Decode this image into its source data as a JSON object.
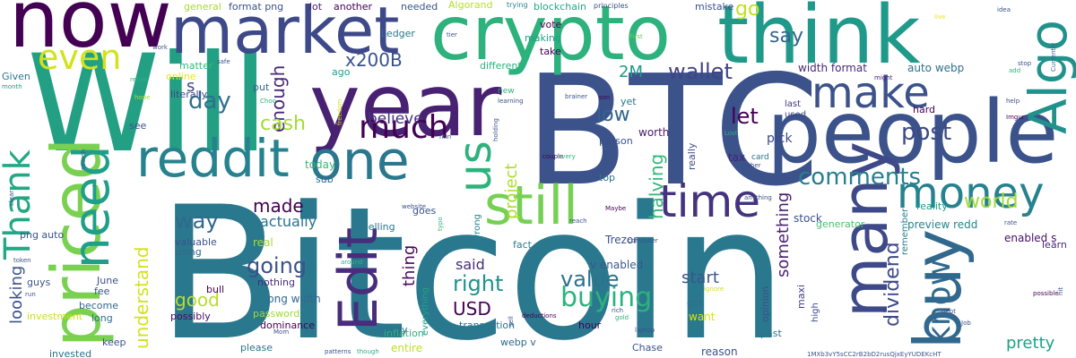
{
  "background": "#ffffff",
  "words": [
    {
      "text": "Bitcoin",
      "color": "#2a788e"
    },
    {
      "text": "Will",
      "color": "#23a083"
    },
    {
      "text": "BTC",
      "color": "#3b528b"
    },
    {
      "text": "crypto",
      "color": "#2db27d"
    },
    {
      "text": "think",
      "color": "#1f9a8a"
    },
    {
      "text": "people",
      "color": "#3b528b"
    },
    {
      "text": "year",
      "color": "#482173"
    },
    {
      "text": "now",
      "color": "#440154"
    },
    {
      "text": "market",
      "color": "#3e4989"
    },
    {
      "text": "priced",
      "color": "#7ad151"
    },
    {
      "text": "buy",
      "color": "#31688e"
    },
    {
      "text": "one",
      "color": "#2a788e"
    },
    {
      "text": "many",
      "color": "#3e4989"
    },
    {
      "text": "reddit",
      "color": "#26828e"
    },
    {
      "text": "Edit",
      "color": "#472d7b"
    },
    {
      "text": "Algo",
      "color": "#21918c"
    },
    {
      "text": "need",
      "color": "#1f9e89"
    },
    {
      "text": "Thank",
      "color": "#22a884"
    },
    {
      "text": "still",
      "color": "#75d054"
    },
    {
      "text": "time",
      "color": "#46337f"
    },
    {
      "text": "money",
      "color": "#26828e"
    },
    {
      "text": "make",
      "color": "#3b528b"
    },
    {
      "text": "us",
      "color": "#2db27d"
    },
    {
      "text": "much",
      "color": "#440154"
    },
    {
      "text": "even",
      "color": "#d2e21b"
    },
    {
      "text": "know",
      "color": "#31688e"
    },
    {
      "text": "comments",
      "color": "#277f8e"
    },
    {
      "text": "buying",
      "color": "#2db27d"
    },
    {
      "text": "going",
      "color": "#3b528b"
    },
    {
      "text": "value",
      "color": "#2c728e"
    },
    {
      "text": "right",
      "color": "#21918c"
    },
    {
      "text": "dividend",
      "color": "#3e4989"
    },
    {
      "text": "post",
      "color": "#3e4989"
    },
    {
      "text": "way",
      "color": "#31688e"
    },
    {
      "text": "understand",
      "color": "#d2e21b"
    },
    {
      "text": "wallet",
      "color": "#414487"
    },
    {
      "text": "made",
      "color": "#440154"
    },
    {
      "text": "let",
      "color": "#440154"
    },
    {
      "text": "enough",
      "color": "#482878"
    },
    {
      "text": "cash",
      "color": "#a5db36"
    },
    {
      "text": "day",
      "color": "#2e6f8e"
    },
    {
      "text": "say",
      "color": "#32658e"
    },
    {
      "text": "x200B",
      "color": "#3b528b"
    },
    {
      "text": "believe",
      "color": "#46327e"
    },
    {
      "text": "low",
      "color": "#32648e"
    },
    {
      "text": "world",
      "color": "#a0da39"
    },
    {
      "text": "halving",
      "color": "#35b779"
    },
    {
      "text": "project",
      "color": "#addc30"
    },
    {
      "text": "something",
      "color": "#481f70"
    },
    {
      "text": "actually",
      "color": "#2c728e"
    },
    {
      "text": "start",
      "color": "#39568c"
    },
    {
      "text": "USD",
      "color": "#440154"
    },
    {
      "text": "said",
      "color": "#472c7a"
    },
    {
      "text": "thing",
      "color": "#46085c"
    },
    {
      "text": "good",
      "color": "#b8de29"
    },
    {
      "text": "looking",
      "color": "#3b528b"
    },
    {
      "text": "pretty",
      "color": "#1fa088"
    },
    {
      "text": "go",
      "color": "#c2df23"
    },
    {
      "text": "s",
      "color": "#3f4788"
    },
    {
      "text": "2M",
      "color": "#1f9a8a"
    },
    {
      "text": "preview redd",
      "color": "#25858e"
    },
    {
      "text": "auto webp",
      "color": "#2d708e"
    },
    {
      "text": "width format",
      "color": "#472a7a"
    },
    {
      "text": "enabled s",
      "color": "#471365"
    },
    {
      "text": "learn",
      "color": "#482878"
    },
    {
      "text": "Trezor",
      "color": "#3b528b"
    },
    {
      "text": "v enabled",
      "color": "#38588c"
    },
    {
      "text": "fact",
      "color": "#277f8e"
    },
    {
      "text": "png width",
      "color": "#31688e"
    },
    {
      "text": "stock",
      "color": "#3b528b"
    },
    {
      "text": "generator",
      "color": "#4ac16d"
    },
    {
      "text": "reality",
      "color": "#1e9b8a"
    },
    {
      "text": "remember",
      "color": "#287d8e"
    },
    {
      "text": "tax",
      "color": "#482475"
    },
    {
      "text": "card",
      "color": "#2d708e"
    },
    {
      "text": "pick",
      "color": "#3f4889"
    },
    {
      "text": "last",
      "color": "#453882"
    },
    {
      "text": "used",
      "color": "#404688"
    },
    {
      "text": "really",
      "color": "#3e4c8a"
    },
    {
      "text": "worth",
      "color": "#481a6c"
    },
    {
      "text": "person",
      "color": "#3b528b"
    },
    {
      "text": "top",
      "color": "#2c738e"
    },
    {
      "text": "yet",
      "color": "#2b758e"
    },
    {
      "text": "today",
      "color": "#38b977"
    },
    {
      "text": "sub",
      "color": "#31688e"
    },
    {
      "text": "goes",
      "color": "#39568c"
    },
    {
      "text": "wrong",
      "color": "#25848e"
    },
    {
      "text": "selling",
      "color": "#2a788e"
    },
    {
      "text": "valuable",
      "color": "#3b528b"
    },
    {
      "text": "using",
      "color": "#31688e"
    },
    {
      "text": "real",
      "color": "#a2da37"
    },
    {
      "text": "nothing",
      "color": "#472c7a"
    },
    {
      "text": "password",
      "color": "#9bd93c"
    },
    {
      "text": "dominance",
      "color": "#440154"
    },
    {
      "text": "possibly",
      "color": "#470d60"
    },
    {
      "text": "become",
      "color": "#31688e"
    },
    {
      "text": "long",
      "color": "#2c718e"
    },
    {
      "text": "keep",
      "color": "#3b528b"
    },
    {
      "text": "please",
      "color": "#2a788e"
    },
    {
      "text": "entire",
      "color": "#c0df25"
    },
    {
      "text": "study",
      "color": "#2d708e"
    },
    {
      "text": "transaction",
      "color": "#2c728e"
    },
    {
      "text": "webp v",
      "color": "#31688e"
    },
    {
      "text": "hour",
      "color": "#440154"
    },
    {
      "text": "Chase",
      "color": "#3b528b"
    },
    {
      "text": "got",
      "color": "#2e6e8e"
    },
    {
      "text": "want",
      "color": "#d8e219"
    },
    {
      "text": "opinion",
      "color": "#3b528b"
    },
    {
      "text": "maxi",
      "color": "#433e85"
    },
    {
      "text": "past",
      "color": "#2b748e"
    },
    {
      "text": "reason",
      "color": "#3b528b"
    },
    {
      "text": "high",
      "color": "#3f4788"
    },
    {
      "text": "fee",
      "color": "#3b528b"
    },
    {
      "text": "guys",
      "color": "#3b528b"
    },
    {
      "text": "bull",
      "color": "#440154"
    },
    {
      "text": "literally",
      "color": "#3f4788"
    },
    {
      "text": "see",
      "color": "#3b528b"
    },
    {
      "text": "online",
      "color": "#e7e419"
    },
    {
      "text": "Given",
      "color": "#2a788e"
    },
    {
      "text": "matter",
      "color": "#35b779"
    },
    {
      "text": "put",
      "color": "#32648e"
    },
    {
      "text": "ago",
      "color": "#1f9e89"
    },
    {
      "text": "different",
      "color": "#2db27d"
    },
    {
      "text": "take",
      "color": "#440154"
    },
    {
      "text": "making",
      "color": "#1fa088"
    },
    {
      "text": "vote",
      "color": "#440154"
    },
    {
      "text": "Ledger",
      "color": "#2a788e"
    },
    {
      "text": "needed",
      "color": "#39568c"
    },
    {
      "text": "another",
      "color": "#440154"
    },
    {
      "text": "lot",
      "color": "#481b6d"
    },
    {
      "text": "format png",
      "color": "#3b528b"
    },
    {
      "text": "general",
      "color": "#a8db34"
    },
    {
      "text": "Algorand",
      "color": "#b5de2b"
    },
    {
      "text": "blockchain",
      "color": "#22a884"
    },
    {
      "text": "mistake",
      "color": "#3b528b"
    },
    {
      "text": "hard",
      "color": "#440154"
    },
    {
      "text": "png auto",
      "color": "#3b528b"
    },
    {
      "text": "June",
      "color": "#3b528b"
    },
    {
      "text": "investment",
      "color": "#c8e020"
    },
    {
      "text": "invested",
      "color": "#2c728e"
    },
    {
      "text": "everything",
      "color": "#1fa187"
    },
    {
      "text": "inflation",
      "color": "#2db27d"
    },
    {
      "text": "trying",
      "color": "#25848e"
    },
    {
      "text": "tier",
      "color": "#3b528b"
    },
    {
      "text": "principles",
      "color": "#3b528b"
    },
    {
      "text": "idea",
      "color": "#3b528b"
    },
    {
      "text": "live",
      "color": "#e5e419"
    },
    {
      "text": "Currently",
      "color": "#31688e"
    },
    {
      "text": "stop",
      "color": "#3b528b"
    },
    {
      "text": "add",
      "color": "#2db27d"
    },
    {
      "text": "First",
      "color": "#6ccd5a"
    },
    {
      "text": "safe",
      "color": "#3b528b"
    },
    {
      "text": "work",
      "color": "#3b528b"
    },
    {
      "text": "month",
      "color": "#1f9a8a"
    },
    {
      "text": "retire",
      "color": "#2db27d"
    },
    {
      "text": "hope",
      "color": "#a5db36"
    },
    {
      "text": "new",
      "color": "#2db27d"
    },
    {
      "text": "learning",
      "color": "#3b528b"
    },
    {
      "text": "brainer",
      "color": "#3b528b"
    },
    {
      "text": "son",
      "color": "#440154"
    },
    {
      "text": "help",
      "color": "#3b528b"
    },
    {
      "text": "Imgur",
      "color": "#440154"
    },
    {
      "text": "might",
      "color": "#482173"
    },
    {
      "text": "Lost",
      "color": "#2db27d"
    },
    {
      "text": "rather",
      "color": "#3b528b"
    },
    {
      "text": "seen",
      "color": "#3b528b"
    },
    {
      "text": "anything",
      "color": "#3b528b"
    },
    {
      "text": "rate",
      "color": "#3b528b"
    },
    {
      "text": "hit",
      "color": "#3b528b"
    },
    {
      "text": "possible",
      "color": "#440154"
    },
    {
      "text": "Maybe",
      "color": "#440154"
    },
    {
      "text": "reach",
      "color": "#3b528b"
    },
    {
      "text": "computer",
      "color": "#3b528b"
    },
    {
      "text": "ignore",
      "color": "#d2e21b"
    },
    {
      "text": "gold",
      "color": "#2db27d"
    },
    {
      "text": "laptop",
      "color": "#3b528b"
    },
    {
      "text": "deductions",
      "color": "#440154"
    },
    {
      "text": "sell",
      "color": "#3b528b"
    },
    {
      "text": "couple",
      "color": "#440154"
    },
    {
      "text": "every",
      "color": "#2db27d"
    },
    {
      "text": "holding",
      "color": "#3b528b"
    },
    {
      "text": "min",
      "color": "#3b528b"
    },
    {
      "text": "freedom",
      "color": "#d2e21b"
    },
    {
      "text": "website",
      "color": "#3b528b"
    },
    {
      "text": "typo",
      "color": "#2db27d"
    },
    {
      "text": "around",
      "color": "#2db27d"
    },
    {
      "text": "patterns",
      "color": "#3b528b"
    },
    {
      "text": "though",
      "color": "#2db27d"
    },
    {
      "text": "token",
      "color": "#3b528b"
    },
    {
      "text": "run",
      "color": "#3b528b"
    },
    {
      "text": "clear",
      "color": "#3b528b"
    },
    {
      "text": "search",
      "color": "#3b528b"
    },
    {
      "text": "Mom",
      "color": "#3b528b"
    },
    {
      "text": "debt",
      "color": "#3b528b"
    },
    {
      "text": "Job",
      "color": "#3b528b"
    },
    {
      "text": "rich",
      "color": "#3b528b"
    },
    {
      "text": "Choo",
      "color": "#2db27d"
    },
    {
      "text": "1MXb3vY5sCC2rB2bD2rusQjxEyYUDEKcHT",
      "color": "#3b528b"
    }
  ]
}
